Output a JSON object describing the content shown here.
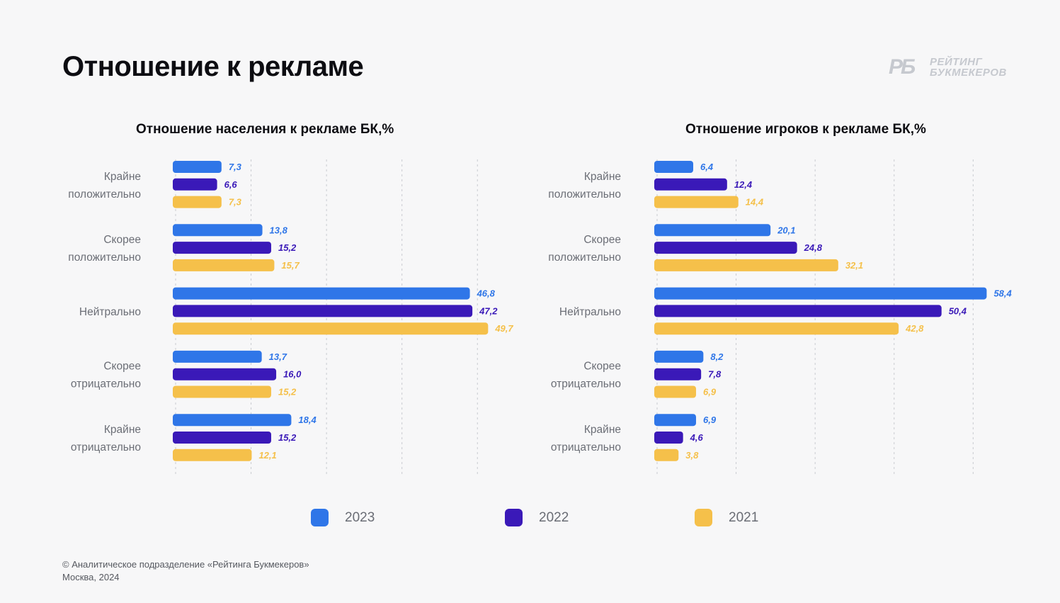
{
  "page": {
    "title": "Отношение к рекламе",
    "logo": {
      "mark": "РБ",
      "line1": "РЕЙТИНГ",
      "line2": "БУКМЕКЕРОВ"
    },
    "footer": {
      "line1": "© Аналитическое подразделение «Рейтинга Букмекеров»",
      "line2": "Москва, 2024"
    }
  },
  "legend": [
    {
      "label": "2023",
      "color": "#2f76e8"
    },
    {
      "label": "2022",
      "color": "#3a19b8"
    },
    {
      "label": "2021",
      "color": "#f5c04a"
    }
  ],
  "chart_data": [
    {
      "type": "bar",
      "orientation": "horizontal",
      "title": "Отношение населения к рекламе БК,%",
      "categories": [
        [
          "Крайне",
          "положительно"
        ],
        [
          "Скорее",
          "положительно"
        ],
        [
          "Нейтрально"
        ],
        [
          "Скорее",
          "отрицательно"
        ],
        [
          "Крайне",
          "отрицательно"
        ]
      ],
      "series": [
        {
          "name": "2023",
          "color": "#2f76e8",
          "values": [
            7.3,
            13.8,
            46.8,
            13.7,
            18.4
          ],
          "labels": [
            "7,3",
            "13,8",
            "46,8",
            "13,7",
            "18,4"
          ]
        },
        {
          "name": "2022",
          "color": "#3a19b8",
          "values": [
            6.6,
            15.2,
            47.2,
            16.0,
            15.2
          ],
          "labels": [
            "6,6",
            "15,2",
            "47,2",
            "16,0",
            "15,2"
          ]
        },
        {
          "name": "2021",
          "color": "#f5c04a",
          "values": [
            7.3,
            15.7,
            49.7,
            15.2,
            12.1
          ],
          "labels": [
            "7,3",
            "15,7",
            "49,7",
            "15,2",
            "12,1"
          ]
        }
      ],
      "xlim": [
        0,
        50
      ],
      "grid": true
    },
    {
      "type": "bar",
      "orientation": "horizontal",
      "title": "Отношение игроков к рекламе БК,%",
      "categories": [
        [
          "Крайне",
          "положительно"
        ],
        [
          "Скорее",
          "положительно"
        ],
        [
          "Нейтрально"
        ],
        [
          "Скорее",
          "отрицательно"
        ],
        [
          "Крайне",
          "отрицательно"
        ]
      ],
      "series": [
        {
          "name": "2023",
          "color": "#2f76e8",
          "values": [
            6.4,
            20.1,
            58.4,
            8.2,
            6.9
          ],
          "labels": [
            "6,4",
            "20,1",
            "58,4",
            "8,2",
            "6,9"
          ]
        },
        {
          "name": "2022",
          "color": "#3a19b8",
          "values": [
            12.4,
            24.8,
            50.4,
            7.8,
            4.6
          ],
          "labels": [
            "12,4",
            "24,8",
            "50,4",
            "7,8",
            "4,6"
          ]
        },
        {
          "name": "2021",
          "color": "#f5c04a",
          "values": [
            14.4,
            32.1,
            42.8,
            6.9,
            3.8
          ],
          "labels": [
            "14,4",
            "32,1",
            "42,8",
            "6,9",
            "3,8"
          ]
        }
      ],
      "xlim": [
        0,
        60
      ],
      "grid": true
    }
  ]
}
